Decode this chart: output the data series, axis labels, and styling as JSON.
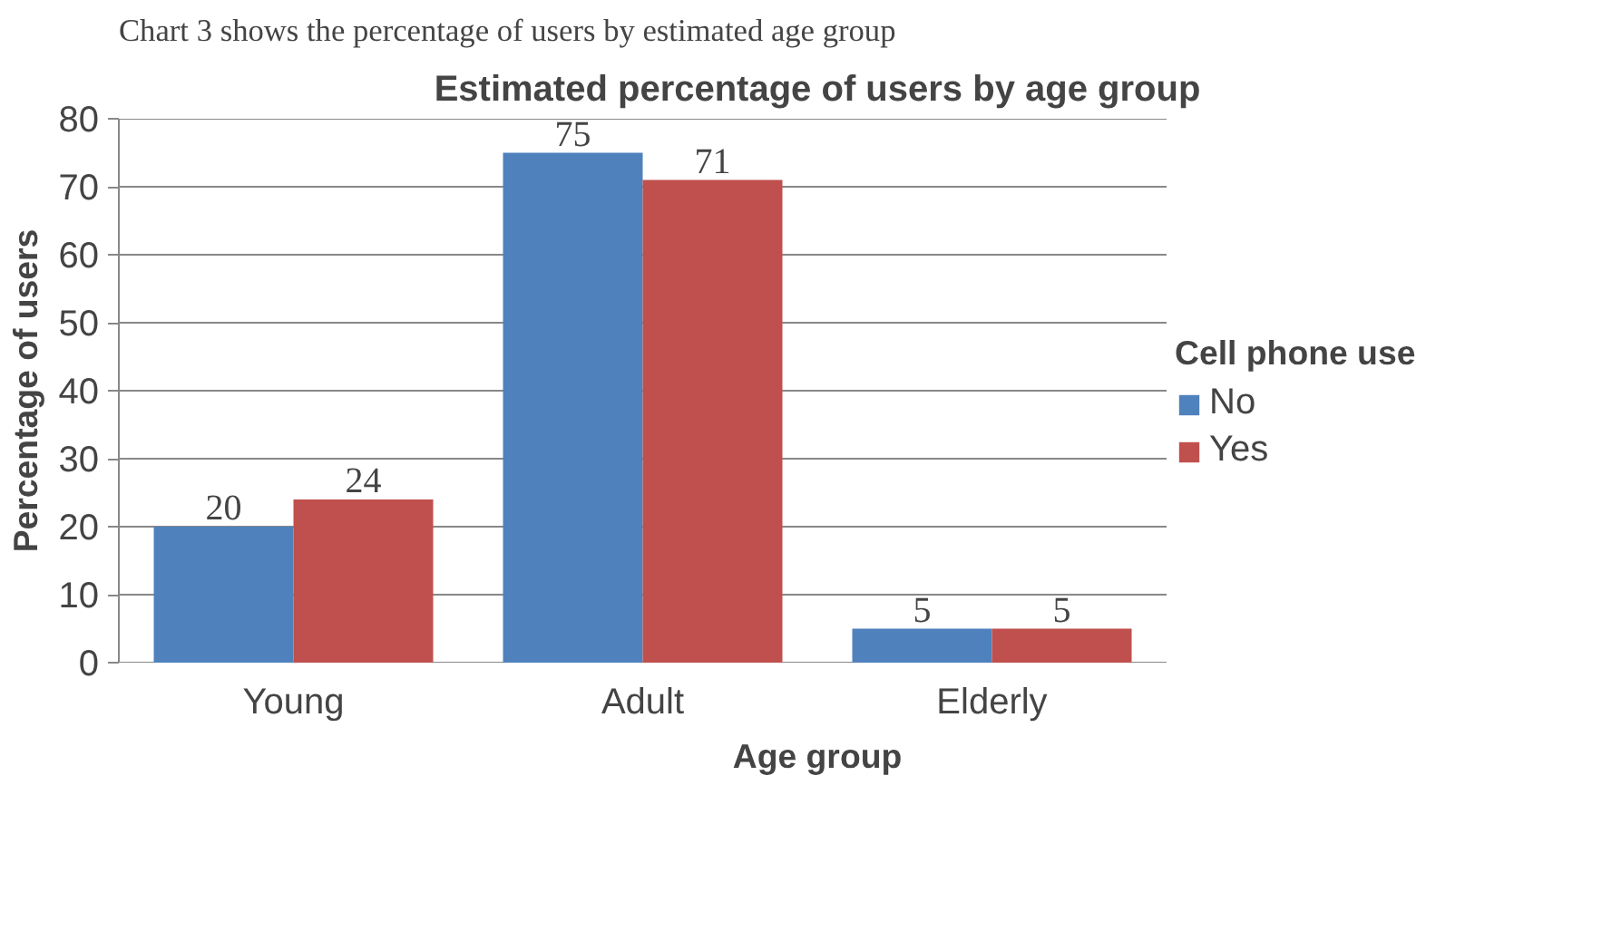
{
  "chart_data": {
    "type": "bar",
    "title": "Estimated percentage of users by age group",
    "xlabel": "Age group",
    "ylabel": "Percentage of users",
    "legend_title": "Cell phone use",
    "categories": [
      "Young",
      "Adult",
      "Elderly"
    ],
    "series": [
      {
        "name": "No",
        "color": "#4f81bd",
        "values": [
          20,
          75,
          5
        ]
      },
      {
        "name": "Yes",
        "color": "#c0504d",
        "values": [
          24,
          71,
          5
        ]
      }
    ],
    "ylim": [
      0,
      80
    ],
    "yticks": [
      0,
      10,
      20,
      30,
      40,
      50,
      60,
      70,
      80
    ],
    "grid": "y",
    "legend": "right",
    "data_labels": true,
    "annotations": [
      "Chart 3 shows the percentage of users by estimated age group"
    ]
  }
}
